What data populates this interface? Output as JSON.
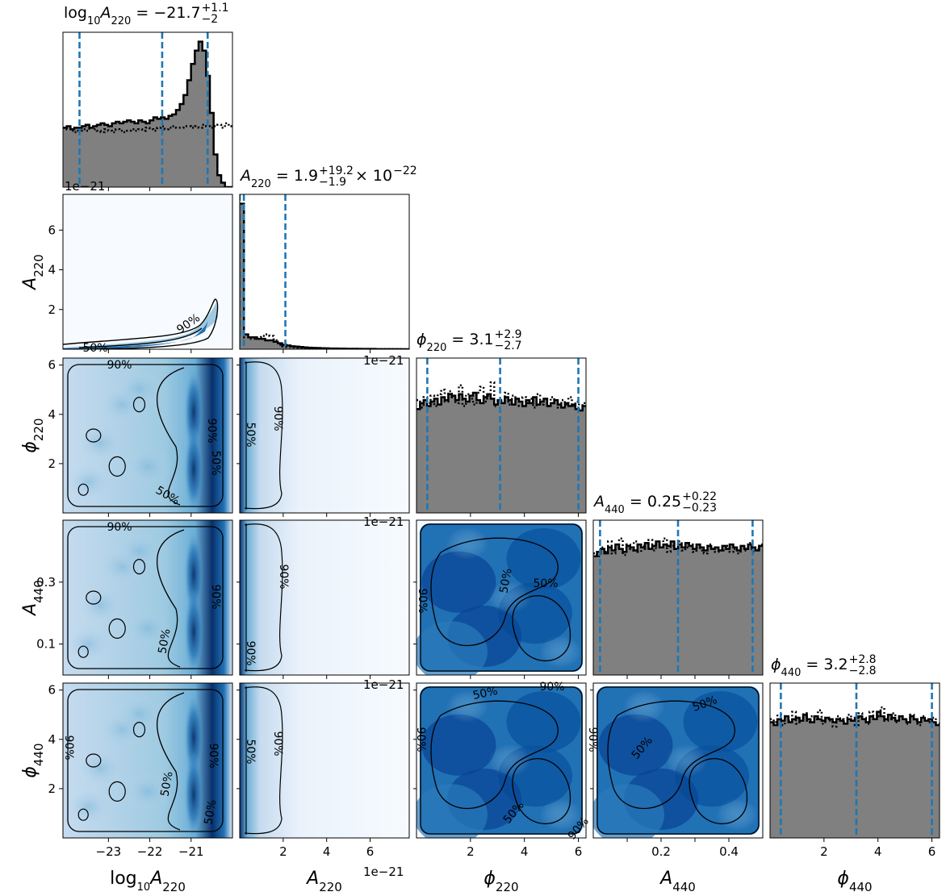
{
  "chart_data": {
    "type": "corner",
    "parameters": [
      {
        "key": "log10A220",
        "label_base": "log",
        "label_sub": "10",
        "label_sym": "A",
        "label_sub2": "220"
      },
      {
        "key": "A220",
        "label_base": "",
        "label_sub": "",
        "label_sym": "A",
        "label_sub2": "220"
      },
      {
        "key": "phi220",
        "label_base": "",
        "label_sub": "",
        "label_sym": "ϕ",
        "label_sub2": "220"
      },
      {
        "key": "A440",
        "label_base": "",
        "label_sub": "",
        "label_sym": "A",
        "label_sub2": "440"
      },
      {
        "key": "phi440",
        "label_base": "",
        "label_sub": "",
        "label_sym": "ϕ",
        "label_sub2": "440"
      }
    ],
    "titles": [
      {
        "lhs_base": "log",
        "lhs_sub": "10",
        "lhs_sym": "A",
        "lhs_sub2": "220",
        "eq": " = ",
        "median": "−21.7",
        "plus": "+1.1",
        "minus": "−2",
        "suffix": "",
        "exp": ""
      },
      {
        "lhs_base": "",
        "lhs_sub": "",
        "lhs_sym": "A",
        "lhs_sub2": "220",
        "eq": " = ",
        "median": "1.9",
        "plus": "+19.2",
        "minus": "−1.9",
        "suffix": " × 10",
        "exp": "−22"
      },
      {
        "lhs_base": "",
        "lhs_sub": "",
        "lhs_sym": "ϕ",
        "lhs_sub2": "220",
        "eq": " = ",
        "median": "3.1",
        "plus": "+2.9",
        "minus": "−2.7",
        "suffix": "",
        "exp": ""
      },
      {
        "lhs_base": "",
        "lhs_sub": "",
        "lhs_sym": "A",
        "lhs_sub2": "440",
        "eq": " = ",
        "median": "0.25",
        "plus": "+0.22",
        "minus": "−0.23",
        "suffix": "",
        "exp": ""
      },
      {
        "lhs_base": "",
        "lhs_sub": "",
        "lhs_sym": "ϕ",
        "lhs_sub2": "440",
        "eq": " = ",
        "median": "3.2",
        "plus": "+2.8",
        "minus": "−2.8",
        "suffix": "",
        "exp": ""
      }
    ],
    "ranges": [
      [
        -24.1,
        -20.0
      ],
      [
        0,
        7.8e-21
      ],
      [
        0,
        6.283
      ],
      [
        0,
        0.5
      ],
      [
        0,
        6.283
      ]
    ],
    "x_ticks": [
      {
        "values": [
          -23,
          -22,
          -21
        ],
        "labels": [
          "−23",
          "−22",
          "−21"
        ]
      },
      {
        "values": [
          2e-21,
          4e-21,
          6e-21
        ],
        "labels": [
          "2",
          "4",
          "6"
        ]
      },
      {
        "values": [
          2,
          4,
          6
        ],
        "labels": [
          "2",
          "4",
          "6"
        ]
      },
      {
        "values": [
          0.1,
          0.2,
          0.3,
          0.4
        ],
        "labels": [
          "",
          "0.2",
          "",
          "0.4"
        ]
      },
      {
        "values": [
          2,
          4,
          6
        ],
        "labels": [
          "2",
          "4",
          "6"
        ]
      }
    ],
    "y_ticks": [
      null,
      {
        "values": [
          2e-21,
          4e-21,
          6e-21
        ],
        "labels": [
          "2",
          "4",
          "6"
        ]
      },
      {
        "values": [
          2,
          4,
          6
        ],
        "labels": [
          "2",
          "4",
          "6"
        ]
      },
      {
        "values": [
          0.1,
          0.3
        ],
        "labels": [
          "0.1",
          "0.3"
        ]
      },
      {
        "values": [
          2,
          4,
          6
        ],
        "labels": [
          "2",
          "4",
          "6"
        ]
      }
    ],
    "offset_text": "1e−21",
    "quantiles": [
      [
        -23.7,
        -21.7,
        -20.6
      ],
      [
        0.0,
        1.9e-22,
        2.1e-21
      ],
      [
        0.4,
        3.1,
        6.0
      ],
      [
        0.02,
        0.25,
        0.47
      ],
      [
        0.4,
        3.2,
        6.0
      ]
    ],
    "histograms": [
      {
        "posterior": [
          0.4,
          0.41,
          0.39,
          0.4,
          0.4,
          0.41,
          0.42,
          0.4,
          0.41,
          0.42,
          0.43,
          0.42,
          0.41,
          0.43,
          0.44,
          0.43,
          0.44,
          0.45,
          0.44,
          0.43,
          0.45,
          0.44,
          0.43,
          0.45,
          0.47,
          0.46,
          0.47,
          0.46,
          0.48,
          0.49,
          0.52,
          0.56,
          0.62,
          0.72,
          0.83,
          0.92,
          0.98,
          0.92,
          0.75,
          0.5,
          0.22,
          0.08,
          0.03,
          0.0,
          0.0
        ],
        "prior": [
          0.4,
          0.39,
          0.38,
          0.37,
          0.38,
          0.39,
          0.38,
          0.4,
          0.39,
          0.38,
          0.37,
          0.39,
          0.38,
          0.37,
          0.39,
          0.38,
          0.37,
          0.38,
          0.39,
          0.38,
          0.39,
          0.38,
          0.4,
          0.39,
          0.38,
          0.4,
          0.41,
          0.39,
          0.4,
          0.41,
          0.4,
          0.4,
          0.41,
          0.41,
          0.4,
          0.41,
          0.4,
          0.42,
          0.41,
          0.4,
          0.41,
          0.42,
          0.4,
          0.43,
          0.41
        ]
      },
      {
        "posterior": [
          0.98,
          0.1,
          0.08,
          0.08,
          0.07,
          0.07,
          0.06,
          0.06,
          0.05,
          0.04,
          0.03,
          0.025,
          0.02,
          0.018,
          0.015,
          0.012,
          0.01,
          0.009,
          0.008,
          0.007,
          0.006,
          0.005,
          0.005,
          0.004,
          0.004,
          0.003,
          0.003,
          0.003,
          0.002,
          0.002,
          0.002,
          0.002,
          0.001,
          0.001,
          0.001,
          0.001,
          0.001,
          0.001,
          0.0,
          0.0
        ],
        "prior": [
          0.98,
          0.08,
          0.07,
          0.07,
          0.08,
          0.09,
          0.1,
          0.09,
          0.06,
          0.03,
          0.02,
          0.015,
          0.012,
          0.01,
          0.01,
          0.008,
          0.007,
          0.006,
          0.005,
          0.005,
          0.004,
          0.004,
          0.003,
          0.003,
          0.003,
          0.002,
          0.002,
          0.002,
          0.002,
          0.001,
          0.001,
          0.001,
          0.001,
          0.001,
          0.001,
          0.001,
          0.0,
          0.0,
          0.0,
          0.0
        ]
      },
      {
        "posterior": [
          0.7,
          0.74,
          0.76,
          0.72,
          0.75,
          0.77,
          0.73,
          0.78,
          0.76,
          0.8,
          0.79,
          0.76,
          0.8,
          0.77,
          0.75,
          0.79,
          0.81,
          0.76,
          0.74,
          0.78,
          0.8,
          0.77,
          0.73,
          0.76,
          0.74,
          0.78,
          0.76,
          0.73,
          0.77,
          0.75,
          0.72,
          0.76,
          0.74,
          0.78,
          0.73,
          0.75,
          0.77,
          0.72,
          0.74,
          0.76,
          0.73,
          0.71,
          0.74,
          0.72,
          0.73,
          0.7,
          0.69,
          0.72
        ],
        "prior": [
          0.76,
          0.71,
          0.78,
          0.74,
          0.79,
          0.72,
          0.8,
          0.83,
          0.75,
          0.82,
          0.78,
          0.74,
          0.86,
          0.72,
          0.8,
          0.77,
          0.73,
          0.81,
          0.85,
          0.75,
          0.79,
          0.88,
          0.72,
          0.77,
          0.74,
          0.81,
          0.73,
          0.79,
          0.75,
          0.72,
          0.78,
          0.74,
          0.77,
          0.71,
          0.8,
          0.73,
          0.76,
          0.72,
          0.78,
          0.74,
          0.71,
          0.76,
          0.73,
          0.78,
          0.72,
          0.75,
          0.7,
          0.74
        ]
      },
      {
        "posterior": [
          0.8,
          0.83,
          0.85,
          0.82,
          0.86,
          0.84,
          0.88,
          0.85,
          0.83,
          0.87,
          0.86,
          0.84,
          0.88,
          0.86,
          0.89,
          0.85,
          0.87,
          0.9,
          0.86,
          0.88,
          0.87,
          0.9,
          0.85,
          0.88,
          0.86,
          0.89,
          0.87,
          0.85,
          0.88,
          0.86,
          0.84,
          0.87,
          0.85,
          0.86,
          0.84,
          0.87,
          0.85,
          0.88,
          0.86,
          0.84,
          0.87,
          0.85,
          0.88,
          0.86,
          0.84,
          0.87
        ],
        "prior": [
          0.82,
          0.8,
          0.86,
          0.83,
          0.9,
          0.82,
          0.85,
          0.92,
          0.81,
          0.88,
          0.84,
          0.9,
          0.83,
          0.87,
          0.85,
          0.91,
          0.84,
          0.88,
          0.86,
          0.92,
          0.83,
          0.87,
          0.85,
          0.9,
          0.84,
          0.86,
          0.88,
          0.83,
          0.86,
          0.84,
          0.82,
          0.88,
          0.85,
          0.83,
          0.86,
          0.84,
          0.87,
          0.83,
          0.85,
          0.82,
          0.86,
          0.84,
          0.89,
          0.83,
          0.85,
          0.88
        ]
      },
      {
        "posterior": [
          0.78,
          0.76,
          0.8,
          0.79,
          0.82,
          0.78,
          0.8,
          0.81,
          0.79,
          0.83,
          0.8,
          0.78,
          0.82,
          0.8,
          0.79,
          0.81,
          0.8,
          0.78,
          0.8,
          0.79,
          0.77,
          0.8,
          0.79,
          0.81,
          0.82,
          0.8,
          0.78,
          0.82,
          0.8,
          0.85,
          0.82,
          0.8,
          0.83,
          0.81,
          0.79,
          0.82,
          0.8,
          0.78,
          0.82,
          0.8,
          0.78,
          0.81,
          0.79,
          0.8,
          0.78,
          0.76
        ],
        "prior": [
          0.8,
          0.78,
          0.83,
          0.76,
          0.82,
          0.79,
          0.85,
          0.77,
          0.81,
          0.84,
          0.78,
          0.82,
          0.8,
          0.86,
          0.77,
          0.81,
          0.79,
          0.75,
          0.82,
          0.8,
          0.78,
          0.83,
          0.79,
          0.76,
          0.84,
          0.81,
          0.77,
          0.85,
          0.8,
          0.82,
          0.88,
          0.79,
          0.8,
          0.84,
          0.78,
          0.82,
          0.8,
          0.77,
          0.83,
          0.79,
          0.76,
          0.82,
          0.8,
          0.78,
          0.81,
          0.77
        ]
      }
    ],
    "contour_levels": [
      "50%",
      "90%"
    ],
    "colormap": "Blues",
    "colors": {
      "hist_fill": "#808080",
      "hist_edge": "#000000",
      "quantile_line": "#1f77b4",
      "density_light": "#f7fbff",
      "density_mid": "#6baed6",
      "density_dark": "#08306b"
    },
    "panel_style": {
      "posterior": "filled-step",
      "prior": "dotted-step",
      "quantiles": "dashed"
    }
  }
}
